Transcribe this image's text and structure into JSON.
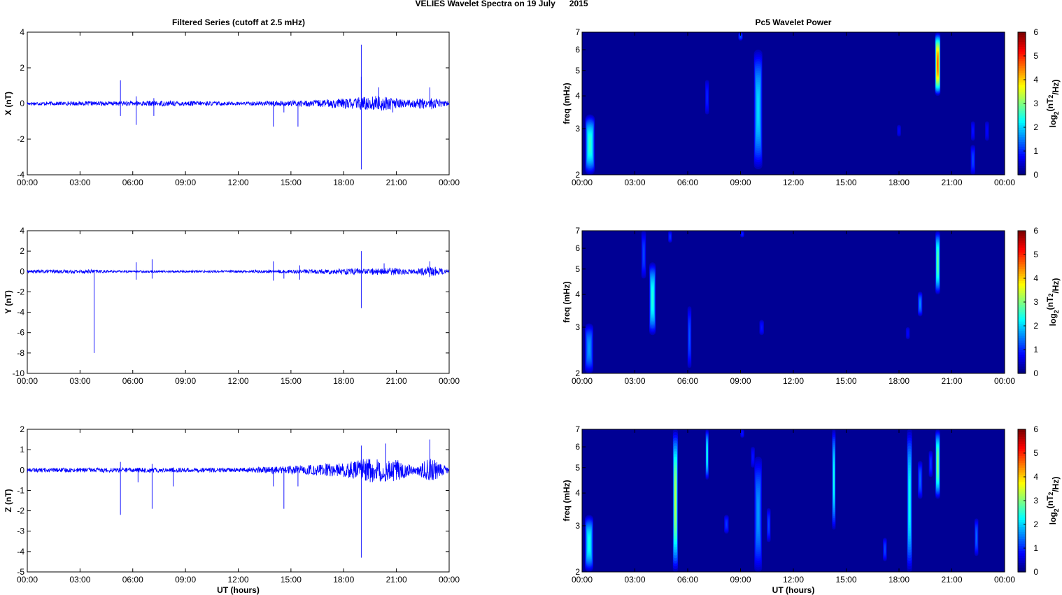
{
  "figure": {
    "title": "VELIES Wavelet Spectra on 19 July      2015",
    "left_title": "Filtered Series (cutoff at 2.5 mHz)",
    "right_title": "Pc5 Wavelet Power",
    "xlabel": "UT (hours)",
    "x_tick_labels": [
      "00:00",
      "03:00",
      "06:00",
      "09:00",
      "12:00",
      "15:00",
      "18:00",
      "21:00",
      "00:00"
    ],
    "freq_ylabel": "freq (mHz)",
    "freq_tick_labels": [
      "2",
      "3",
      "4",
      "5",
      "6",
      "7"
    ],
    "colorbar_label": "log2(nT2/Hz)",
    "colorbar_tick_labels": [
      "0",
      "1",
      "2",
      "3",
      "4",
      "5",
      "6"
    ],
    "line_color": "#0000ff"
  },
  "chart_data": [
    {
      "type": "line",
      "title": "Filtered Series (cutoff at 2.5 mHz)",
      "ylabel": "X (nT)",
      "xlim": [
        0,
        24
      ],
      "ylim": [
        -4,
        4
      ],
      "yticks": [
        4,
        2,
        0,
        -2,
        -4
      ],
      "noise_amplitude_by_hour": [
        [
          0,
          0.1
        ],
        [
          5,
          0.12
        ],
        [
          8,
          0.15
        ],
        [
          12,
          0.1
        ],
        [
          16,
          0.18
        ],
        [
          18,
          0.28
        ],
        [
          20,
          0.45
        ],
        [
          21.5,
          0.2
        ],
        [
          23,
          0.35
        ],
        [
          24,
          0.1
        ]
      ],
      "spikes": [
        [
          5.3,
          1.3
        ],
        [
          5.3,
          -0.7
        ],
        [
          6.2,
          -1.2
        ],
        [
          6.2,
          0.4
        ],
        [
          7.2,
          -0.7
        ],
        [
          7.2,
          0.3
        ],
        [
          14,
          -1.3
        ],
        [
          14.6,
          -0.5
        ],
        [
          15.4,
          -1.3
        ],
        [
          19,
          3.3
        ],
        [
          19,
          -3.7
        ],
        [
          19,
          1.5
        ],
        [
          20,
          0.9
        ],
        [
          20.8,
          -0.5
        ],
        [
          22.9,
          0.9
        ]
      ]
    },
    {
      "type": "line",
      "ylabel": "Y (nT)",
      "xlim": [
        0,
        24
      ],
      "ylim": [
        -10,
        4
      ],
      "yticks": [
        4,
        2,
        0,
        -2,
        -4,
        -6,
        -8,
        -10
      ],
      "noise_amplitude_by_hour": [
        [
          0,
          0.15
        ],
        [
          3.5,
          0.2
        ],
        [
          5,
          0.1
        ],
        [
          12,
          0.12
        ],
        [
          16,
          0.2
        ],
        [
          18,
          0.3
        ],
        [
          21,
          0.35
        ],
        [
          22,
          0.2
        ],
        [
          23,
          0.6
        ],
        [
          24,
          0.1
        ]
      ],
      "spikes": [
        [
          3.8,
          -8
        ],
        [
          6.2,
          0.9
        ],
        [
          6.2,
          -0.8
        ],
        [
          7.1,
          1.2
        ],
        [
          7.1,
          -0.7
        ],
        [
          14,
          1
        ],
        [
          14,
          -0.9
        ],
        [
          14.6,
          -0.7
        ],
        [
          15.5,
          0.6
        ],
        [
          15.5,
          -0.8
        ],
        [
          19,
          2
        ],
        [
          19,
          -3.6
        ],
        [
          20.3,
          0.8
        ],
        [
          22.9,
          1
        ]
      ]
    },
    {
      "type": "line",
      "ylabel": "Z (nT)",
      "xlim": [
        0,
        24
      ],
      "ylim": [
        -5,
        2
      ],
      "yticks": [
        2,
        1,
        0,
        -1,
        -2,
        -3,
        -4,
        -5
      ],
      "noise_amplitude_by_hour": [
        [
          0,
          0.1
        ],
        [
          8,
          0.12
        ],
        [
          12,
          0.1
        ],
        [
          16,
          0.25
        ],
        [
          18,
          0.35
        ],
        [
          19.5,
          0.6
        ],
        [
          21,
          0.55
        ],
        [
          22,
          0.2
        ],
        [
          23,
          0.6
        ],
        [
          24,
          0.1
        ]
      ],
      "spikes": [
        [
          5.3,
          -2.2
        ],
        [
          5.3,
          0.4
        ],
        [
          6.3,
          -0.6
        ],
        [
          7.1,
          -1.9
        ],
        [
          7.1,
          0.3
        ],
        [
          8.3,
          -0.8
        ],
        [
          14,
          -0.8
        ],
        [
          14.6,
          -1.9
        ],
        [
          15.4,
          -0.8
        ],
        [
          19,
          -4.3
        ],
        [
          19,
          1.2
        ],
        [
          20.4,
          1.3
        ],
        [
          22.9,
          1.5
        ],
        [
          22.9,
          -0.5
        ]
      ]
    },
    {
      "type": "heatmap",
      "title": "Pc5 Wavelet Power",
      "ylabel": "freq (mHz)",
      "xlim": [
        0,
        24
      ],
      "ylim": [
        2,
        7
      ],
      "y_scale": "log",
      "zlim": [
        0,
        6
      ],
      "colormap": "jet",
      "blobs": [
        {
          "t": 0.45,
          "f1": 2,
          "f2": 3.4,
          "peak": 2.2,
          "wt": 0.25
        },
        {
          "t": 9,
          "f1": 6.5,
          "f2": 7,
          "peak": 0.9,
          "wt": 0.12
        },
        {
          "t": 10,
          "f1": 2.1,
          "f2": 6,
          "peak": 1.7,
          "wt": 0.22
        },
        {
          "t": 7.1,
          "f1": 3.4,
          "f2": 4.6,
          "peak": 0.6,
          "wt": 0.1
        },
        {
          "t": 20.2,
          "f1": 4,
          "f2": 7,
          "peak": 4.3,
          "wt": 0.14
        },
        {
          "t": 22.2,
          "f1": 2,
          "f2": 2.6,
          "peak": 0.8,
          "wt": 0.12
        },
        {
          "t": 22.2,
          "f1": 2.7,
          "f2": 3.2,
          "peak": 0.5,
          "wt": 0.1
        },
        {
          "t": 23,
          "f1": 2.7,
          "f2": 3.2,
          "peak": 0.4,
          "wt": 0.1
        },
        {
          "t": 18,
          "f1": 2.8,
          "f2": 3.1,
          "peak": 0.35,
          "wt": 0.1
        }
      ]
    },
    {
      "type": "heatmap",
      "ylabel": "freq (mHz)",
      "xlim": [
        0,
        24
      ],
      "ylim": [
        2,
        7
      ],
      "y_scale": "log",
      "zlim": [
        0,
        6
      ],
      "colormap": "jet",
      "blobs": [
        {
          "t": 0.4,
          "f1": 2,
          "f2": 3.1,
          "peak": 1.3,
          "wt": 0.22
        },
        {
          "t": 4,
          "f1": 2.8,
          "f2": 5.3,
          "peak": 2.1,
          "wt": 0.17
        },
        {
          "t": 3.5,
          "f1": 4.6,
          "f2": 7,
          "peak": 0.8,
          "wt": 0.12
        },
        {
          "t": 5,
          "f1": 6.3,
          "f2": 7,
          "peak": 0.7,
          "wt": 0.1
        },
        {
          "t": 6.1,
          "f1": 2.1,
          "f2": 3.6,
          "peak": 0.9,
          "wt": 0.1
        },
        {
          "t": 9.1,
          "f1": 6.6,
          "f2": 7,
          "peak": 0.6,
          "wt": 0.1
        },
        {
          "t": 10.2,
          "f1": 2.8,
          "f2": 3.2,
          "peak": 0.5,
          "wt": 0.12
        },
        {
          "t": 19.2,
          "f1": 3.3,
          "f2": 4.1,
          "peak": 1.2,
          "wt": 0.12
        },
        {
          "t": 18.5,
          "f1": 2.7,
          "f2": 3,
          "peak": 0.4,
          "wt": 0.1
        },
        {
          "t": 20.2,
          "f1": 4,
          "f2": 7,
          "peak": 2.5,
          "wt": 0.12
        }
      ]
    },
    {
      "type": "heatmap",
      "ylabel": "freq (mHz)",
      "xlim": [
        0,
        24
      ],
      "ylim": [
        2,
        7
      ],
      "y_scale": "log",
      "zlim": [
        0,
        6
      ],
      "colormap": "jet",
      "blobs": [
        {
          "t": 0.4,
          "f1": 2,
          "f2": 3.3,
          "peak": 2,
          "wt": 0.22
        },
        {
          "t": 5.3,
          "f1": 2,
          "f2": 7,
          "peak": 3,
          "wt": 0.13
        },
        {
          "t": 7.1,
          "f1": 4.5,
          "f2": 7,
          "peak": 2,
          "wt": 0.08
        },
        {
          "t": 8.2,
          "f1": 2.8,
          "f2": 3.3,
          "peak": 0.7,
          "wt": 0.12
        },
        {
          "t": 9.1,
          "f1": 6.5,
          "f2": 7,
          "peak": 0.5,
          "wt": 0.1
        },
        {
          "t": 10,
          "f1": 2,
          "f2": 5.5,
          "peak": 1.3,
          "wt": 0.2
        },
        {
          "t": 10.6,
          "f1": 2.6,
          "f2": 3.5,
          "peak": 0.8,
          "wt": 0.1
        },
        {
          "t": 14.3,
          "f1": 2.9,
          "f2": 7,
          "peak": 2,
          "wt": 0.09
        },
        {
          "t": 17.2,
          "f1": 2.2,
          "f2": 2.7,
          "peak": 0.8,
          "wt": 0.1
        },
        {
          "t": 18.6,
          "f1": 2,
          "f2": 7,
          "peak": 2,
          "wt": 0.13
        },
        {
          "t": 19.2,
          "f1": 3.8,
          "f2": 5.3,
          "peak": 1,
          "wt": 0.12
        },
        {
          "t": 19.8,
          "f1": 4.6,
          "f2": 5.8,
          "peak": 0.7,
          "wt": 0.1
        },
        {
          "t": 20.2,
          "f1": 3.8,
          "f2": 7,
          "peak": 2.7,
          "wt": 0.12
        },
        {
          "t": 22.4,
          "f1": 2.3,
          "f2": 3.2,
          "peak": 1,
          "wt": 0.1
        },
        {
          "t": 9.7,
          "f1": 5,
          "f2": 6,
          "peak": 0.5,
          "wt": 0.1
        }
      ]
    }
  ]
}
